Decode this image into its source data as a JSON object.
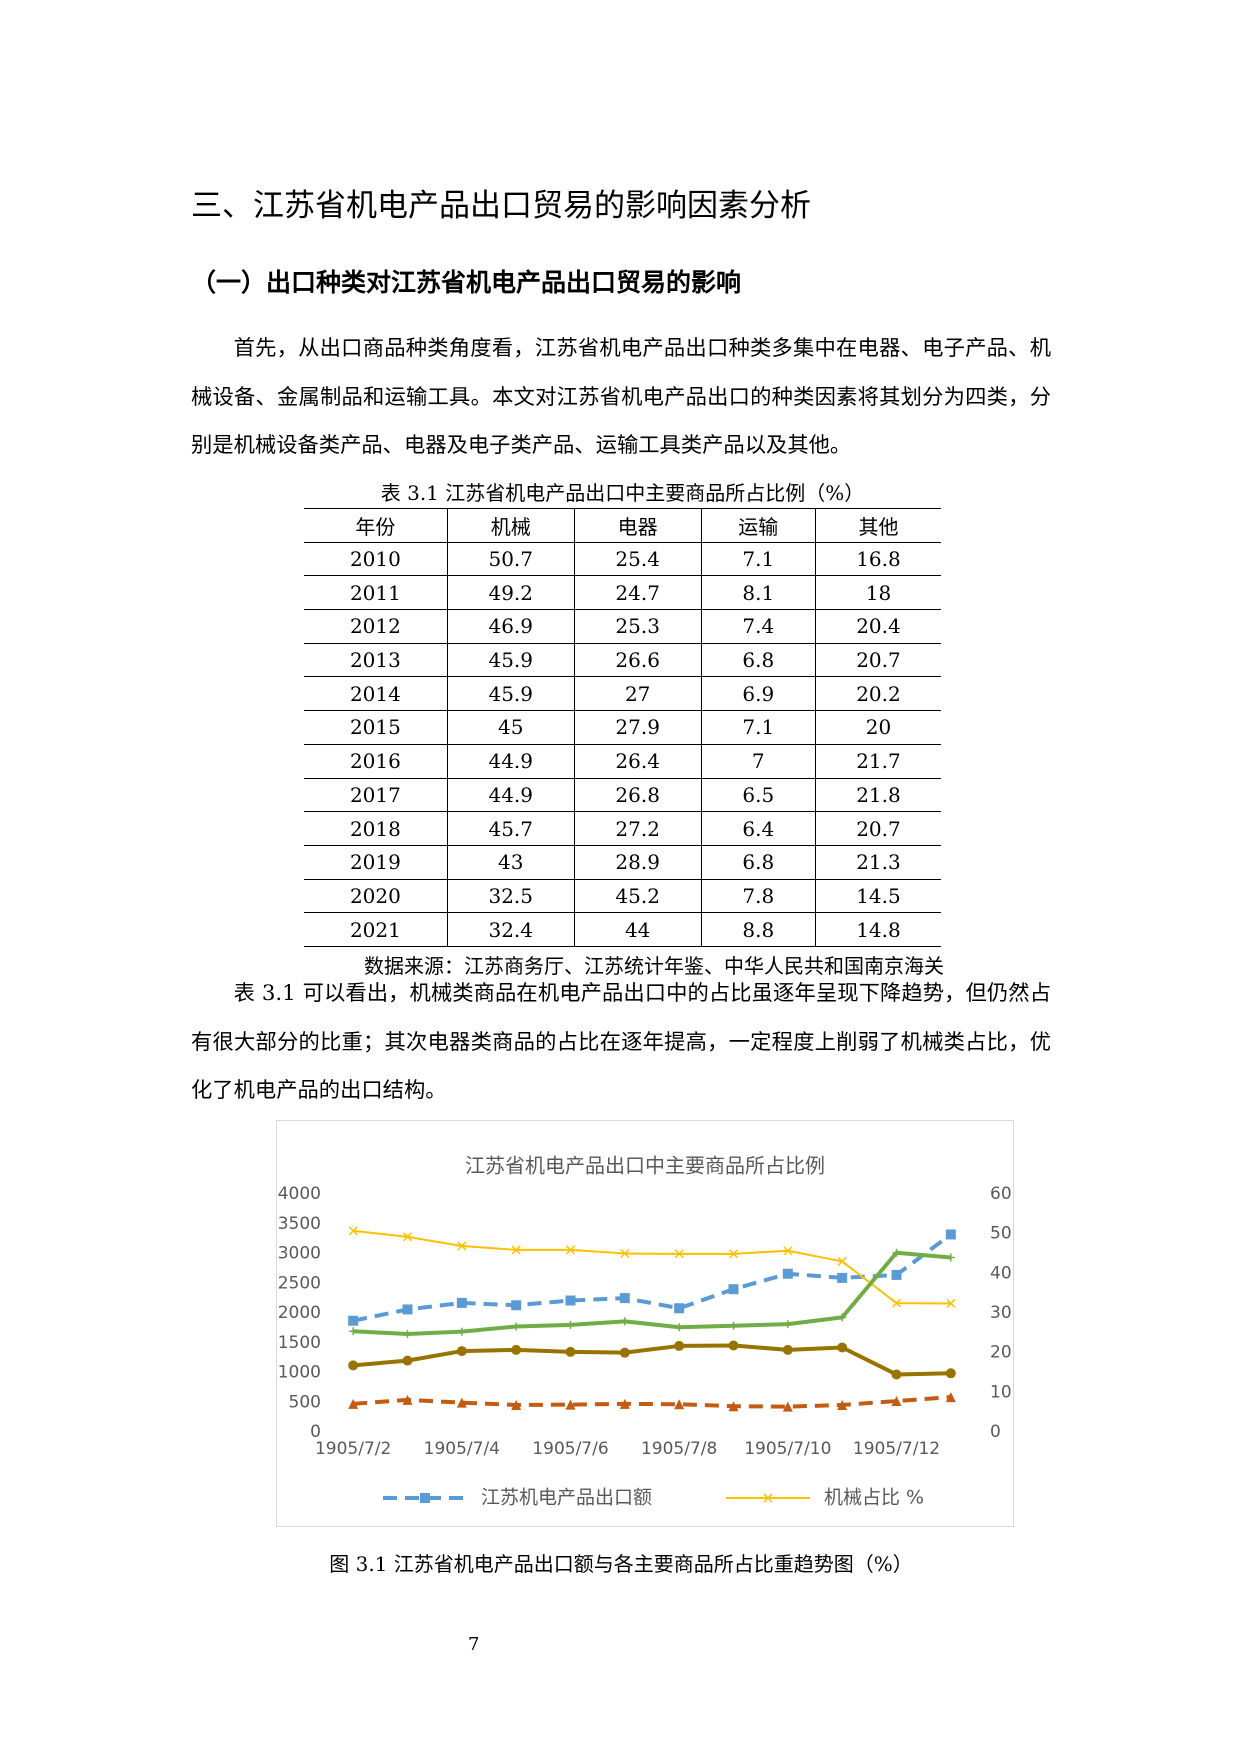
{
  "heading": "三、江苏省机电产品出口贸易的影响因素分析",
  "subheading": "（一）出口种类对江苏省机电产品出口贸易的影响",
  "paragraph1": "首先，从出口商品种类角度看，江苏省机电产品出口种类多集中在电器、电子产品、机械设备、金属制品和运输工具。本文对江苏省机电产品出口的种类因素将其划分为四类，分别是机械设备类产品、电器及电子类产品、运输工具类产品以及其他。",
  "table": {
    "caption": "表 3.1 江苏省机电产品出口中主要商品所占比例（%）",
    "header": [
      "年份",
      "机械",
      "电器",
      "运输",
      "其他"
    ],
    "rows": [
      [
        "2010",
        50.7,
        25.4,
        7.1,
        16.8
      ],
      [
        "2011",
        49.2,
        24.7,
        8.1,
        18
      ],
      [
        "2012",
        46.9,
        25.3,
        7.4,
        20.4
      ],
      [
        "2013",
        45.9,
        26.6,
        6.8,
        20.7
      ],
      [
        "2014",
        45.9,
        27,
        6.9,
        20.2
      ],
      [
        "2015",
        45,
        27.9,
        7.1,
        20
      ],
      [
        "2016",
        44.9,
        26.4,
        7,
        21.7
      ],
      [
        "2017",
        44.9,
        26.8,
        6.5,
        21.8
      ],
      [
        "2018",
        45.7,
        27.2,
        6.4,
        20.7
      ],
      [
        "2019",
        43,
        28.9,
        6.8,
        21.3
      ],
      [
        "2020",
        32.5,
        45.2,
        7.8,
        14.5
      ],
      [
        "2021",
        32.4,
        44,
        8.8,
        14.8
      ]
    ],
    "source": "数据来源：江苏商务厅、江苏统计年鉴、中华人民共和国南京海关"
  },
  "paragraph2": "表 3.1 可以看出，机械类商品在机电产品出口中的占比虽逐年呈现下降趋势，但仍然占有很大部分的比重；其次电器类商品的占比在逐年提高，一定程度上削弱了机械类占比，优化了机电产品的出口结构。",
  "chart_data": {
    "type": "line",
    "title": "江苏省机电产品出口中主要商品所占比例",
    "categories": [
      "1905/7/2",
      null,
      "1905/7/4",
      null,
      "1905/7/6",
      null,
      "1905/7/8",
      null,
      "1905/7/10",
      null,
      "1905/7/12",
      null
    ],
    "ylim": [
      0,
      4000
    ],
    "yticks": [
      0,
      500,
      1000,
      1500,
      2000,
      2500,
      3000,
      3500,
      4000
    ],
    "y2lim": [
      0,
      60
    ],
    "y2ticks": [
      0,
      10,
      20,
      30,
      40,
      50,
      60
    ],
    "series": [
      {
        "name": "江苏机电产品出口额",
        "color": "#5b9bd5",
        "marker": "square",
        "dash": true,
        "values": [
          1870,
          2060,
          2170,
          2130,
          2210,
          2250,
          2080,
          2400,
          2660,
          2590,
          2640,
          3320
        ]
      },
      {
        "name": "机械占比 %",
        "color": "#ffc000",
        "marker": "x",
        "axis": "y2",
        "values": [
          50.7,
          49.2,
          46.9,
          45.9,
          45.9,
          45,
          44.9,
          44.9,
          45.7,
          43,
          32.5,
          32.4
        ]
      },
      {
        "color": "#70ad47",
        "marker": "plus",
        "axis": "y2",
        "values": [
          25.4,
          24.7,
          25.3,
          26.6,
          27,
          27.9,
          26.4,
          26.8,
          27.2,
          28.9,
          45.2,
          44
        ]
      },
      {
        "color": "#997300",
        "marker": "circle",
        "axis": "y2",
        "values": [
          16.8,
          18,
          20.4,
          20.7,
          20.2,
          20,
          21.7,
          21.8,
          20.7,
          21.3,
          14.5,
          14.8
        ]
      },
      {
        "color": "#c55a11",
        "marker": "triangle",
        "dash": true,
        "axis": "y2",
        "values": [
          7.1,
          8.1,
          7.4,
          6.8,
          6.9,
          7.1,
          7,
          6.5,
          6.4,
          6.8,
          7.8,
          8.8
        ]
      }
    ]
  },
  "figure_caption": "图 3.1 江苏省机电产品出口额与各主要商品所占比重趋势图（%）",
  "page_number": "7"
}
